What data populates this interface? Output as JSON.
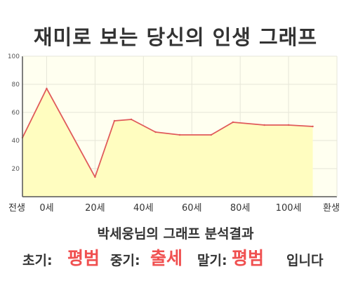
{
  "page": {
    "title": "재미로 보는 당신의 인생 그래프"
  },
  "chart_data": {
    "type": "area",
    "x": [
      -10,
      0,
      20,
      28,
      35,
      45,
      55,
      68,
      77,
      90,
      100,
      110
    ],
    "y": [
      42,
      77,
      14,
      54,
      55,
      46,
      44,
      44,
      53,
      51,
      51,
      50
    ],
    "xlim": [
      -10,
      120
    ],
    "ylim": [
      0,
      100
    ],
    "x_ticks": [
      {
        "value": -10,
        "label": "전생"
      },
      {
        "value": 0,
        "label": "0세"
      },
      {
        "value": 20,
        "label": "20세"
      },
      {
        "value": 40,
        "label": "40세"
      },
      {
        "value": 60,
        "label": "60세"
      },
      {
        "value": 80,
        "label": "80세"
      },
      {
        "value": 100,
        "label": "100세"
      },
      {
        "value": 120,
        "label": "환생"
      }
    ],
    "y_ticks": [
      {
        "value": 20,
        "label": "20"
      },
      {
        "value": 40,
        "label": "40"
      },
      {
        "value": 60,
        "label": "60"
      },
      {
        "value": 80,
        "label": "80"
      },
      {
        "value": 100,
        "label": "100"
      }
    ],
    "grid": true,
    "colors": {
      "line": "#e05a5a",
      "fill": "#fffdc0",
      "plot_bg": "#fffff0",
      "grid": "#e6e6d8",
      "axis": "#555555"
    }
  },
  "result": {
    "title": "박세웅님의 그래프 분석결과",
    "early_label": "초기:",
    "early_value": "평범",
    "middle_label": "중기:",
    "middle_value": "출세",
    "late_label": "말기:",
    "late_value": "평범",
    "suffix": "입니다",
    "highlight_color": "#f05050"
  }
}
